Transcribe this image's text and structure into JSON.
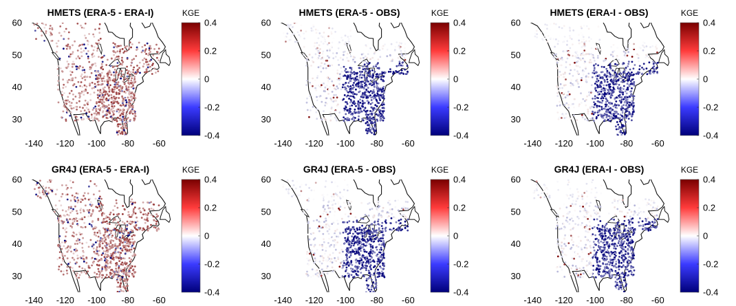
{
  "colorbar": {
    "label": "KGE",
    "ticks": [
      "0.4",
      "0.2",
      "0",
      "-0.2",
      "-0.4"
    ],
    "range": [
      -0.4,
      0.4
    ],
    "colors": {
      "low": "#00007a",
      "mid": "#ffffff",
      "high": "#7a0000"
    }
  },
  "axes": {
    "lon_ticks": [
      "-140",
      "-120",
      "-100",
      "-80",
      "-60"
    ],
    "lat_ticks": [
      "60",
      "50",
      "40",
      "30"
    ],
    "lon_range": [
      -145,
      -50
    ],
    "lat_range": [
      25,
      60
    ]
  },
  "panels": [
    {
      "title": "HMETS (ERA-5 - ERA-I)",
      "model": "HMETS",
      "comparison": "ERA-5 - ERA-I",
      "pattern": "red"
    },
    {
      "title": "HMETS (ERA-5 - OBS)",
      "model": "HMETS",
      "comparison": "ERA-5 - OBS",
      "pattern": "blue"
    },
    {
      "title": "HMETS (ERA-I - OBS)",
      "model": "HMETS",
      "comparison": "ERA-I - OBS",
      "pattern": "blue"
    },
    {
      "title": "GR4J (ERA-5 - ERA-I)",
      "model": "GR4J",
      "comparison": "ERA-5 - ERA-I",
      "pattern": "red"
    },
    {
      "title": "GR4J (ERA-5 - OBS)",
      "model": "GR4J",
      "comparison": "ERA-5 - OBS",
      "pattern": "blue"
    },
    {
      "title": "GR4J (ERA-I - OBS)",
      "model": "GR4J",
      "comparison": "ERA-I - OBS",
      "pattern": "blue"
    }
  ]
}
